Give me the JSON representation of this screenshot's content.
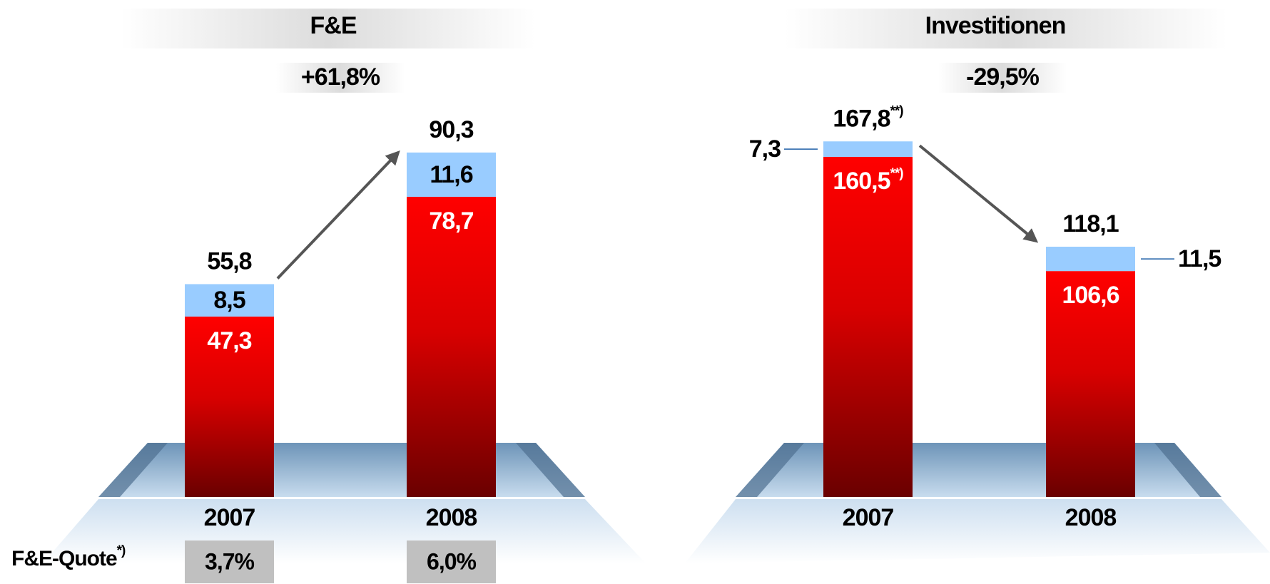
{
  "chart_data": [
    {
      "type": "bar",
      "stacked": true,
      "title": "F&E",
      "annotation": "+61,8%",
      "categories": [
        "2007",
        "2008"
      ],
      "series": [
        {
          "color": "#e00000",
          "values": [
            47.3,
            78.7
          ],
          "value_labels": [
            "47,3",
            "78,7"
          ]
        },
        {
          "color": "#99ccff",
          "values": [
            8.5,
            11.6
          ],
          "value_labels": [
            "8,5",
            "11,6"
          ]
        }
      ],
      "totals": [
        55.8,
        90.3
      ],
      "total_labels": [
        "55,8",
        "90,3"
      ],
      "ylim": [
        0,
        100
      ],
      "quote_label": "F&E-Quote",
      "quote_note": "*)",
      "quote_values": [
        3.7,
        6.0
      ],
      "quote_labels": [
        "3,7%",
        "6,0%"
      ]
    },
    {
      "type": "bar",
      "stacked": true,
      "title": "Investitionen",
      "annotation": "-29,5%",
      "categories": [
        "2007",
        "2008"
      ],
      "series": [
        {
          "color": "#e00000",
          "values": [
            160.5,
            106.6
          ],
          "value_labels": [
            "160,5",
            "106,6"
          ],
          "value_notes": [
            "**)",
            null
          ]
        },
        {
          "color": "#99ccff",
          "values": [
            7.3,
            11.5
          ],
          "value_labels": [
            "7,3",
            "11,5"
          ]
        }
      ],
      "totals": [
        167.8,
        118.1
      ],
      "total_labels": [
        "167,8",
        "118,1"
      ],
      "total_notes": [
        "**)",
        null
      ],
      "ylim": [
        0,
        180
      ]
    }
  ]
}
